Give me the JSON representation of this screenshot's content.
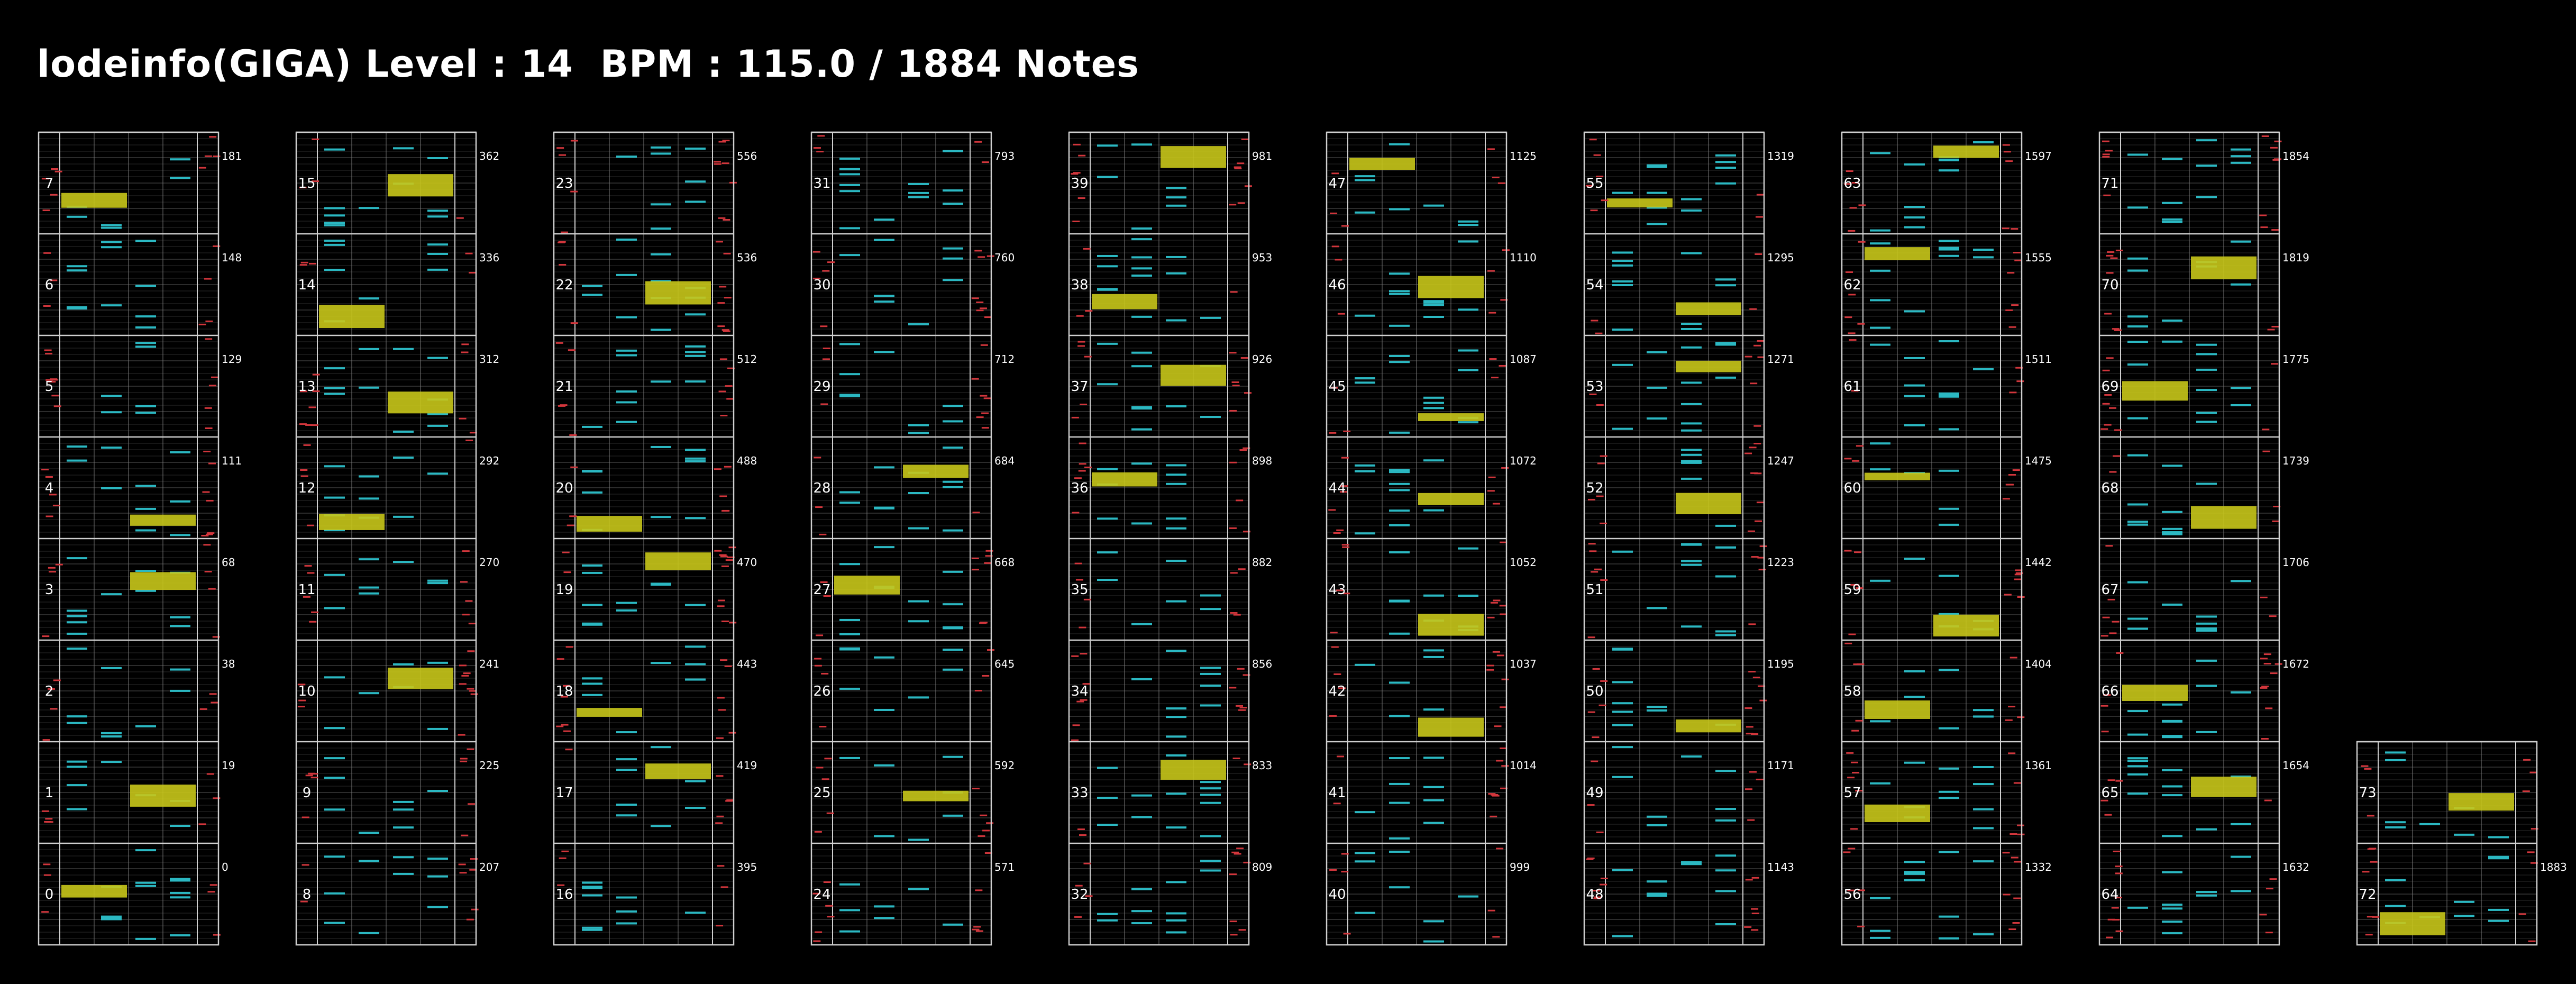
{
  "header": {
    "title": "lodeinfo(GIGA) Level : 14  BPM : 115.0 / 1884 Notes"
  },
  "colors": {
    "background": "#000000",
    "frame": "#cfcfcf",
    "grid": "#3a3a3a",
    "lane": "#7a7a7a",
    "bt_note": "#2bb8c2",
    "fx_long": "#c8c61a",
    "laser": "#d2363c"
  },
  "columns": [
    {
      "bars": [
        {
          "bar": 7,
          "count": "181"
        },
        {
          "bar": 6,
          "count": "148"
        },
        {
          "bar": 5,
          "count": "129"
        },
        {
          "bar": 4,
          "count": "111"
        },
        {
          "bar": 3,
          "count": "68"
        },
        {
          "bar": 2,
          "count": "38"
        },
        {
          "bar": 1,
          "count": "19"
        },
        {
          "bar": 0,
          "count": "0"
        }
      ]
    },
    {
      "bars": [
        {
          "bar": 15,
          "count": "362"
        },
        {
          "bar": 14,
          "count": "336"
        },
        {
          "bar": 13,
          "count": "312"
        },
        {
          "bar": 12,
          "count": "292"
        },
        {
          "bar": 11,
          "count": "270"
        },
        {
          "bar": 10,
          "count": "241"
        },
        {
          "bar": 9,
          "count": "225"
        },
        {
          "bar": 8,
          "count": "207"
        }
      ]
    },
    {
      "bars": [
        {
          "bar": 23,
          "count": "556"
        },
        {
          "bar": 22,
          "count": "536"
        },
        {
          "bar": 21,
          "count": "512"
        },
        {
          "bar": 20,
          "count": "488"
        },
        {
          "bar": 19,
          "count": "470"
        },
        {
          "bar": 18,
          "count": "443"
        },
        {
          "bar": 17,
          "count": "419"
        },
        {
          "bar": 16,
          "count": "395"
        }
      ]
    },
    {
      "bars": [
        {
          "bar": 31,
          "count": "793"
        },
        {
          "bar": 30,
          "count": "760"
        },
        {
          "bar": 29,
          "count": "712"
        },
        {
          "bar": 28,
          "count": "684"
        },
        {
          "bar": 27,
          "count": "668"
        },
        {
          "bar": 26,
          "count": "645"
        },
        {
          "bar": 25,
          "count": "592"
        },
        {
          "bar": 24,
          "count": "571"
        }
      ]
    },
    {
      "bars": [
        {
          "bar": 39,
          "count": "981"
        },
        {
          "bar": 38,
          "count": "953"
        },
        {
          "bar": 37,
          "count": "926"
        },
        {
          "bar": 36,
          "count": "898"
        },
        {
          "bar": 35,
          "count": "882"
        },
        {
          "bar": 34,
          "count": "856"
        },
        {
          "bar": 33,
          "count": "833"
        },
        {
          "bar": 32,
          "count": "809"
        }
      ]
    },
    {
      "bars": [
        {
          "bar": 47,
          "count": "1125"
        },
        {
          "bar": 46,
          "count": "1110"
        },
        {
          "bar": 45,
          "count": "1087"
        },
        {
          "bar": 44,
          "count": "1072"
        },
        {
          "bar": 43,
          "count": "1052"
        },
        {
          "bar": 42,
          "count": "1037"
        },
        {
          "bar": 41,
          "count": "1014"
        },
        {
          "bar": 40,
          "count": "999"
        }
      ]
    },
    {
      "bars": [
        {
          "bar": 55,
          "count": "1319"
        },
        {
          "bar": 54,
          "count": "1295"
        },
        {
          "bar": 53,
          "count": "1271"
        },
        {
          "bar": 52,
          "count": "1247"
        },
        {
          "bar": 51,
          "count": "1223"
        },
        {
          "bar": 50,
          "count": "1195"
        },
        {
          "bar": 49,
          "count": "1171"
        },
        {
          "bar": 48,
          "count": "1143"
        }
      ]
    },
    {
      "bars": [
        {
          "bar": 63,
          "count": "1597"
        },
        {
          "bar": 62,
          "count": "1555"
        },
        {
          "bar": 61,
          "count": "1511"
        },
        {
          "bar": 60,
          "count": "1475"
        },
        {
          "bar": 59,
          "count": "1442"
        },
        {
          "bar": 58,
          "count": "1404"
        },
        {
          "bar": 57,
          "count": "1361"
        },
        {
          "bar": 56,
          "count": "1332"
        }
      ]
    },
    {
      "bars": [
        {
          "bar": 71,
          "count": "1854"
        },
        {
          "bar": 70,
          "count": "1819"
        },
        {
          "bar": 69,
          "count": "1775"
        },
        {
          "bar": 68,
          "count": "1739"
        },
        {
          "bar": 67,
          "count": "1706"
        },
        {
          "bar": 66,
          "count": "1672"
        },
        {
          "bar": 65,
          "count": "1654"
        },
        {
          "bar": 64,
          "count": "1632"
        }
      ]
    },
    {
      "bars": [
        {
          "bar": 73,
          "count": ""
        },
        {
          "bar": 72,
          "count": "1883"
        }
      ]
    }
  ]
}
